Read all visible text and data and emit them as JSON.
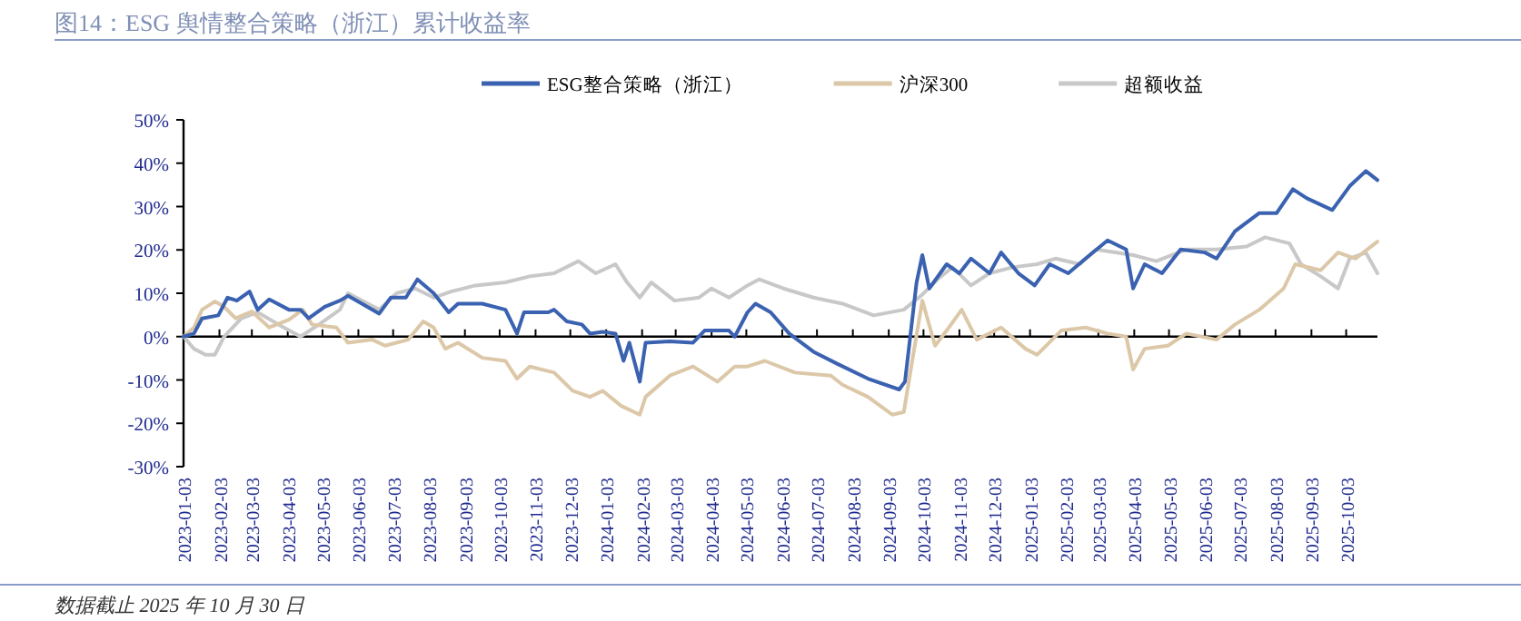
{
  "chart_data": {
    "type": "line",
    "title": "图14：ESG 舆情整合策略（浙江）累计收益率",
    "annotations": [
      "数据截止 2025 年 10 月 30 日"
    ],
    "legend": "top",
    "xlim": [
      "2023-01-03",
      "2025-10-30"
    ],
    "xticks": [
      "2023-01-03",
      "2023-02-03",
      "2023-03-03",
      "2023-04-03",
      "2023-05-03",
      "2023-06-03",
      "2023-07-03",
      "2023-08-03",
      "2023-09-03",
      "2023-10-03",
      "2023-11-03",
      "2023-12-03",
      "2024-01-03",
      "2024-02-03",
      "2024-03-03",
      "2024-04-03",
      "2024-05-03",
      "2024-06-03",
      "2024-07-03",
      "2024-08-03",
      "2024-09-03",
      "2024-10-03",
      "2024-11-03",
      "2024-12-03",
      "2025-01-03",
      "2025-02-03",
      "2025-03-03",
      "2025-04-03",
      "2025-05-03",
      "2025-06-03",
      "2025-07-03",
      "2025-08-03",
      "2025-09-03",
      "2025-10-03"
    ],
    "ylim": [
      -30,
      50
    ],
    "yticks": [
      {
        "value": -30,
        "label": "-30%"
      },
      {
        "value": -20,
        "label": "-20%"
      },
      {
        "value": -10,
        "label": "-10%"
      },
      {
        "value": 0,
        "label": "0%"
      },
      {
        "value": 10,
        "label": "10%"
      },
      {
        "value": 20,
        "label": "20%"
      },
      {
        "value": 30,
        "label": "30%"
      },
      {
        "value": 40,
        "label": "40%"
      },
      {
        "value": 50,
        "label": "50%"
      }
    ],
    "series": [
      {
        "name": "ESG整合策略（浙江）",
        "color": "#3a62b0",
        "x": [
          "2023-01-03",
          "2023-01-12",
          "2023-01-19",
          "2023-02-02",
          "2023-02-10",
          "2023-02-18",
          "2023-03-01",
          "2023-03-08",
          "2023-03-18",
          "2023-04-04",
          "2023-04-14",
          "2023-04-21",
          "2023-05-05",
          "2023-05-18",
          "2023-05-25",
          "2023-06-06",
          "2023-06-21",
          "2023-07-01",
          "2023-07-14",
          "2023-07-24",
          "2023-08-07",
          "2023-08-20",
          "2023-08-28",
          "2023-09-18",
          "2023-10-08",
          "2023-10-18",
          "2023-10-24",
          "2023-11-14",
          "2023-11-19",
          "2023-11-30",
          "2023-12-13",
          "2023-12-20",
          "2023-12-31",
          "2024-01-11",
          "2024-01-18",
          "2024-01-23",
          "2024-02-01",
          "2024-02-06",
          "2024-02-27",
          "2024-03-18",
          "2024-03-28",
          "2024-04-18",
          "2024-04-23",
          "2024-05-04",
          "2024-05-11",
          "2024-05-24",
          "2024-06-09",
          "2024-06-30",
          "2024-07-20",
          "2024-08-16",
          "2024-09-12",
          "2024-09-17",
          "2024-09-27",
          "2024-10-02",
          "2024-10-08",
          "2024-10-23",
          "2024-11-03",
          "2024-11-13",
          "2024-11-29",
          "2024-12-09",
          "2024-12-24",
          "2025-01-07",
          "2025-01-20",
          "2025-02-05",
          "2025-02-20",
          "2025-03-11",
          "2025-03-27",
          "2025-04-02",
          "2025-04-12",
          "2025-04-27",
          "2025-05-13",
          "2025-06-03",
          "2025-06-13",
          "2025-06-29",
          "2025-07-20",
          "2025-08-04",
          "2025-08-18",
          "2025-08-30",
          "2025-09-21",
          "2025-10-06",
          "2025-10-20",
          "2025-10-30"
        ],
        "values": [
          0,
          0.7,
          4.2,
          4.9,
          9,
          8.3,
          10.4,
          6.2,
          8.6,
          6.2,
          6.2,
          4.2,
          6.9,
          8.3,
          9.4,
          7.6,
          5.3,
          9,
          9,
          13.2,
          10,
          5.6,
          7.6,
          7.6,
          6.2,
          0.7,
          5.6,
          5.6,
          6.2,
          3.5,
          2.8,
          0.7,
          1.1,
          0.7,
          -5.6,
          -1.4,
          -10.4,
          -1.4,
          -1.1,
          -1.4,
          1.4,
          1.4,
          0,
          5.6,
          7.6,
          5.6,
          0.7,
          -3.5,
          -6.2,
          -9.7,
          -12.2,
          -10.4,
          12.5,
          18.8,
          11.1,
          16.7,
          14.6,
          18,
          14.6,
          19.4,
          14.6,
          11.8,
          16.7,
          14.6,
          18,
          22.2,
          20.1,
          11.1,
          16.7,
          14.6,
          20.1,
          19.4,
          18,
          24.3,
          28.5,
          28.5,
          34,
          31.9,
          29.2,
          34.7,
          38.2,
          36.1
        ]
      },
      {
        "name": "沪深300",
        "color": "#dcc8a8",
        "x": [
          "2023-01-03",
          "2023-01-12",
          "2023-01-19",
          "2023-01-30",
          "2023-02-07",
          "2023-02-17",
          "2023-03-03",
          "2023-03-18",
          "2023-04-04",
          "2023-04-16",
          "2023-04-24",
          "2023-05-15",
          "2023-05-25",
          "2023-06-15",
          "2023-06-26",
          "2023-07-16",
          "2023-07-29",
          "2023-08-07",
          "2023-08-17",
          "2023-08-28",
          "2023-09-18",
          "2023-10-08",
          "2023-10-18",
          "2023-10-29",
          "2023-11-19",
          "2023-12-05",
          "2023-12-20",
          "2023-12-31",
          "2024-01-16",
          "2024-02-01",
          "2024-02-06",
          "2024-02-27",
          "2024-03-18",
          "2024-04-08",
          "2024-04-23",
          "2024-05-04",
          "2024-05-19",
          "2024-06-14",
          "2024-07-15",
          "2024-07-25",
          "2024-08-16",
          "2024-09-06",
          "2024-09-16",
          "2024-09-25",
          "2024-10-02",
          "2024-10-13",
          "2024-10-23",
          "2024-11-05",
          "2024-11-18",
          "2024-12-09",
          "2024-12-30",
          "2025-01-09",
          "2025-01-30",
          "2025-02-20",
          "2025-03-11",
          "2025-03-27",
          "2025-04-02",
          "2025-04-12",
          "2025-05-02",
          "2025-05-18",
          "2025-06-13",
          "2025-06-29",
          "2025-07-20",
          "2025-08-10",
          "2025-08-20",
          "2025-09-11",
          "2025-09-26",
          "2025-10-11",
          "2025-10-30"
        ],
        "values": [
          0,
          2.1,
          6.2,
          8.1,
          6.9,
          4.2,
          5.8,
          2.1,
          3.9,
          6.2,
          2.8,
          2.1,
          -1.4,
          -0.7,
          -2.1,
          -0.7,
          3.5,
          2.1,
          -2.8,
          -1.4,
          -4.9,
          -5.6,
          -9.7,
          -6.9,
          -8.3,
          -12.5,
          -13.9,
          -12.5,
          -16,
          -18,
          -13.9,
          -9,
          -6.9,
          -10.4,
          -6.9,
          -6.9,
          -5.6,
          -8.3,
          -9,
          -11.1,
          -13.9,
          -18,
          -17.4,
          -2.8,
          8.3,
          -2.1,
          1.4,
          6.2,
          -0.7,
          2.1,
          -2.8,
          -4.2,
          1.4,
          2.1,
          0.7,
          0,
          -7.6,
          -2.8,
          -2.1,
          0.7,
          -0.7,
          2.8,
          6.2,
          11.1,
          16.7,
          15.3,
          19.4,
          18,
          21.9
        ]
      },
      {
        "name": "超额收益",
        "color": "#c8c8c8",
        "x": [
          "2023-01-03",
          "2023-01-12",
          "2023-01-22",
          "2023-01-30",
          "2023-02-07",
          "2023-02-22",
          "2023-03-08",
          "2023-03-26",
          "2023-04-14",
          "2023-04-30",
          "2023-05-18",
          "2023-05-25",
          "2023-06-06",
          "2023-06-21",
          "2023-07-06",
          "2023-07-22",
          "2023-08-07",
          "2023-08-22",
          "2023-09-12",
          "2023-10-08",
          "2023-10-29",
          "2023-11-19",
          "2023-12-10",
          "2023-12-25",
          "2024-01-11",
          "2024-01-21",
          "2024-02-01",
          "2024-02-11",
          "2024-03-02",
          "2024-03-23",
          "2024-04-03",
          "2024-04-18",
          "2024-05-04",
          "2024-05-14",
          "2024-06-04",
          "2024-06-30",
          "2024-07-25",
          "2024-08-21",
          "2024-09-16",
          "2024-10-02",
          "2024-10-15",
          "2024-10-28",
          "2024-11-13",
          "2024-11-29",
          "2024-12-19",
          "2025-01-09",
          "2025-01-25",
          "2025-02-15",
          "2025-03-01",
          "2025-04-02",
          "2025-04-22",
          "2025-05-18",
          "2025-06-13",
          "2025-07-09",
          "2025-07-25",
          "2025-08-15",
          "2025-08-25",
          "2025-09-11",
          "2025-09-26",
          "2025-10-06",
          "2025-10-20",
          "2025-10-30"
        ],
        "values": [
          0,
          -2.8,
          -4.2,
          -4.2,
          0,
          4.2,
          5.6,
          2.8,
          0,
          2.8,
          6.2,
          10,
          8.3,
          6.2,
          10,
          11.1,
          9,
          10.4,
          11.8,
          12.5,
          13.9,
          14.6,
          17.4,
          14.6,
          16.7,
          12.5,
          9,
          12.5,
          8.3,
          9,
          11.1,
          9,
          11.8,
          13.2,
          11.1,
          9,
          7.6,
          4.9,
          6.2,
          9.7,
          13.2,
          16,
          11.8,
          14.6,
          16,
          16.7,
          18,
          16.7,
          20.1,
          18.8,
          17.4,
          20.1,
          20.1,
          20.8,
          22.9,
          21.5,
          16.7,
          13.9,
          11.1,
          18,
          19.4,
          14.6
        ]
      }
    ]
  }
}
